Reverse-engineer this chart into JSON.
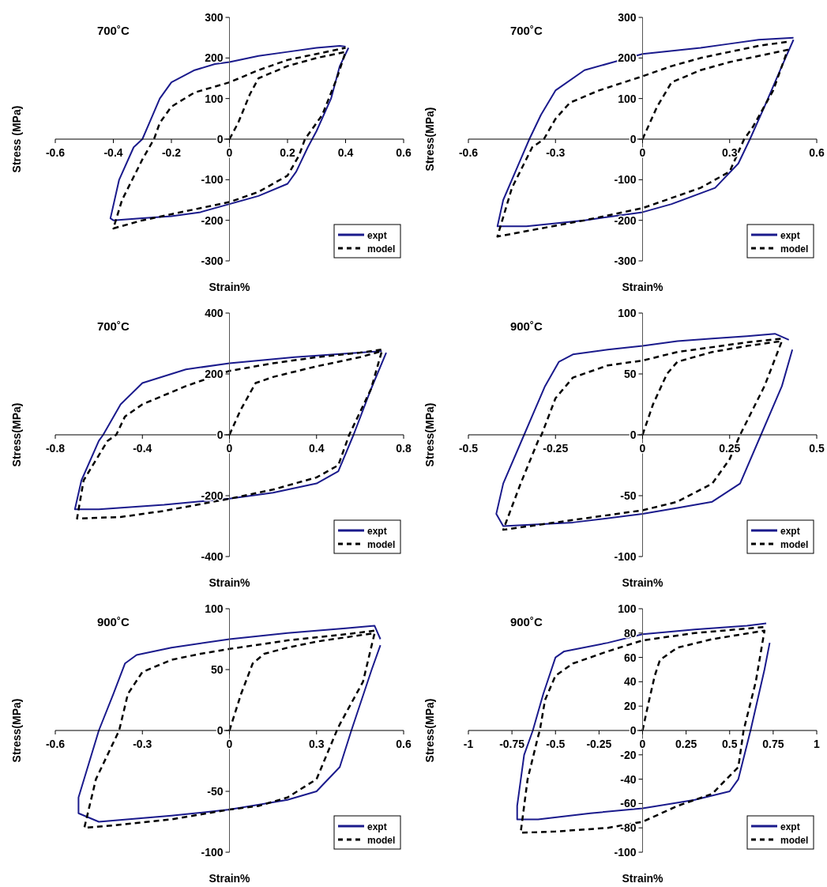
{
  "chart_data": [
    {
      "type": "line",
      "title": "700˚C",
      "xlabel": "Strain%",
      "ylabel": "Stress (MPa)",
      "xlim": [
        -0.6,
        0.6
      ],
      "ylim": [
        -300,
        300
      ],
      "xticks": [
        -0.6,
        -0.4,
        -0.2,
        0,
        0.2,
        0.4,
        0.6
      ],
      "yticks": [
        -300,
        -200,
        -100,
        0,
        100,
        200,
        300
      ],
      "legend": "bottom right",
      "series": [
        {
          "name": "expt",
          "color": "#1a1a8c",
          "line_style": "solid",
          "x": [
            0.41,
            0.38,
            0.35,
            0.3,
            0.27,
            0.23,
            0.2,
            0.1,
            0,
            -0.1,
            -0.2,
            -0.3,
            -0.4,
            -0.41,
            -0.38,
            -0.33,
            -0.3,
            -0.27,
            -0.24,
            -0.2,
            -0.12,
            -0.05,
            0,
            0.1,
            0.2,
            0.3,
            0.38,
            0.4
          ],
          "values": [
            225,
            180,
            100,
            20,
            -20,
            -80,
            -110,
            -140,
            -160,
            -180,
            -190,
            -195,
            -200,
            -195,
            -100,
            -20,
            0,
            50,
            100,
            140,
            170,
            185,
            190,
            205,
            215,
            225,
            230,
            228
          ]
        },
        {
          "name": "model",
          "color": "#000000",
          "line_style": "dashed",
          "x": [
            0,
            0.03,
            0.07,
            0.1,
            0.2,
            0.3,
            0.4,
            0.37,
            0.32,
            0.26,
            0.24,
            0.2,
            0.1,
            0,
            -0.1,
            -0.2,
            -0.3,
            -0.4,
            -0.37,
            -0.3,
            -0.26,
            -0.24,
            -0.2,
            -0.12,
            0,
            0.1,
            0.2,
            0.3,
            0.4
          ],
          "values": [
            0,
            40,
            110,
            150,
            180,
            200,
            215,
            150,
            60,
            0,
            -40,
            -90,
            -130,
            -155,
            -170,
            -185,
            -200,
            -220,
            -150,
            -50,
            0,
            40,
            80,
            115,
            140,
            170,
            195,
            210,
            225
          ]
        }
      ]
    },
    {
      "type": "line",
      "title": "700˚C",
      "xlabel": "Strain%",
      "ylabel": "Stress(MPa)",
      "xlim": [
        -0.6,
        0.6
      ],
      "ylim": [
        -300,
        300
      ],
      "xticks": [
        -0.6,
        -0.3,
        0,
        0.3,
        0.6
      ],
      "yticks": [
        -300,
        -200,
        -100,
        0,
        100,
        200,
        300
      ],
      "legend": "bottom right",
      "series": [
        {
          "name": "expt",
          "color": "#1a1a8c",
          "line_style": "solid",
          "x": [
            0.52,
            0.48,
            0.42,
            0.37,
            0.33,
            0.25,
            0.1,
            0,
            -0.2,
            -0.4,
            -0.5,
            -0.48,
            -0.42,
            -0.39,
            -0.35,
            -0.3,
            -0.2,
            -0.1,
            0,
            0.2,
            0.3,
            0.4,
            0.52
          ],
          "values": [
            245,
            180,
            80,
            0,
            -60,
            -120,
            -160,
            -180,
            -200,
            -215,
            -215,
            -150,
            -50,
            0,
            60,
            120,
            170,
            190,
            210,
            225,
            235,
            245,
            250
          ]
        },
        {
          "name": "model",
          "color": "#000000",
          "line_style": "dashed",
          "x": [
            0,
            0.05,
            0.1,
            0.2,
            0.3,
            0.4,
            0.5,
            0.45,
            0.38,
            0.35,
            0.3,
            0.2,
            0.1,
            0,
            -0.2,
            -0.35,
            -0.5,
            -0.45,
            -0.38,
            -0.34,
            -0.3,
            -0.25,
            -0.15,
            0,
            0.1,
            0.2,
            0.3,
            0.4,
            0.5
          ],
          "values": [
            0,
            80,
            140,
            170,
            190,
            205,
            220,
            120,
            30,
            0,
            -80,
            -120,
            -145,
            -170,
            -200,
            -220,
            -240,
            -120,
            -20,
            0,
            50,
            90,
            120,
            155,
            180,
            200,
            215,
            230,
            240
          ]
        }
      ]
    },
    {
      "type": "line",
      "title": "700˚C",
      "xlabel": "Strain%",
      "ylabel": "Stress(MPa)",
      "xlim": [
        -0.8,
        0.8
      ],
      "ylim": [
        -400,
        400
      ],
      "xticks": [
        -0.8,
        -0.4,
        0,
        0.4,
        0.8
      ],
      "yticks": [
        -400,
        -200,
        0,
        200,
        400
      ],
      "legend": "bottom right",
      "series": [
        {
          "name": "expt",
          "color": "#1a1a8c",
          "line_style": "solid",
          "x": [
            0.72,
            0.65,
            0.57,
            0.5,
            0.4,
            0.2,
            0,
            -0.3,
            -0.6,
            -0.71,
            -0.68,
            -0.6,
            -0.58,
            -0.5,
            -0.4,
            -0.2,
            0,
            0.3,
            0.6,
            0.7
          ],
          "values": [
            270,
            150,
            0,
            -120,
            -160,
            -190,
            -210,
            -230,
            -245,
            -245,
            -150,
            -20,
            0,
            100,
            170,
            215,
            235,
            255,
            270,
            275
          ]
        },
        {
          "name": "model",
          "color": "#000000",
          "line_style": "dashed",
          "x": [
            0,
            0.05,
            0.12,
            0.2,
            0.4,
            0.6,
            0.7,
            0.65,
            0.55,
            0.5,
            0.4,
            0.2,
            0,
            -0.3,
            -0.5,
            -0.7,
            -0.67,
            -0.56,
            -0.52,
            -0.48,
            -0.4,
            -0.2,
            0,
            0.2,
            0.4,
            0.6,
            0.7
          ],
          "values": [
            0,
            80,
            170,
            190,
            225,
            255,
            275,
            150,
            0,
            -100,
            -140,
            -180,
            -210,
            -250,
            -270,
            -275,
            -150,
            -20,
            0,
            60,
            100,
            160,
            210,
            235,
            255,
            270,
            280
          ]
        }
      ]
    },
    {
      "type": "line",
      "title": "900˚C",
      "xlabel": "Strain%",
      "ylabel": "Stress(MPa)",
      "xlim": [
        -0.5,
        0.5
      ],
      "ylim": [
        -100,
        100
      ],
      "xticks": [
        -0.5,
        -0.25,
        0,
        0.25,
        0.5
      ],
      "yticks": [
        -100,
        -50,
        0,
        50,
        100
      ],
      "legend": "bottom right",
      "series": [
        {
          "name": "expt",
          "color": "#1a1a8c",
          "line_style": "solid",
          "x": [
            0.43,
            0.4,
            0.34,
            0.28,
            0.2,
            0.1,
            0,
            -0.2,
            -0.4,
            -0.42,
            -0.4,
            -0.34,
            -0.31,
            -0.28,
            -0.24,
            -0.2,
            -0.1,
            0,
            0.1,
            0.2,
            0.3,
            0.38,
            0.42
          ],
          "values": [
            70,
            40,
            0,
            -40,
            -55,
            -60,
            -65,
            -72,
            -75,
            -65,
            -40,
            0,
            20,
            40,
            60,
            66,
            70,
            73,
            77,
            79,
            81,
            83,
            78
          ]
        },
        {
          "name": "model",
          "color": "#000000",
          "line_style": "dashed",
          "x": [
            0,
            0.03,
            0.07,
            0.1,
            0.2,
            0.3,
            0.4,
            0.35,
            0.28,
            0.25,
            0.2,
            0.1,
            0,
            -0.2,
            -0.4,
            -0.35,
            -0.3,
            -0.29,
            -0.25,
            -0.2,
            -0.1,
            0,
            0.1,
            0.2,
            0.3,
            0.4
          ],
          "values": [
            0,
            25,
            50,
            60,
            68,
            73,
            77,
            40,
            0,
            -20,
            -40,
            -55,
            -62,
            -70,
            -78,
            -40,
            -5,
            0,
            30,
            47,
            57,
            61,
            68,
            72,
            76,
            79
          ]
        }
      ]
    },
    {
      "type": "line",
      "title": "900˚C",
      "xlabel": "Strain%",
      "ylabel": "Stress(MPa)",
      "xlim": [
        -0.6,
        0.6
      ],
      "ylim": [
        -100,
        100
      ],
      "xticks": [
        -0.6,
        -0.3,
        0,
        0.3,
        0.6
      ],
      "yticks": [
        -100,
        -50,
        0,
        50,
        100
      ],
      "legend": "bottom right",
      "series": [
        {
          "name": "expt",
          "color": "#1a1a8c",
          "line_style": "solid",
          "x": [
            0.52,
            0.49,
            0.42,
            0.38,
            0.3,
            0.2,
            0,
            -0.2,
            -0.45,
            -0.52,
            -0.52,
            -0.45,
            -0.4,
            -0.36,
            -0.32,
            -0.2,
            0,
            0.2,
            0.4,
            0.5,
            0.52
          ],
          "values": [
            70,
            50,
            0,
            -30,
            -50,
            -57,
            -65,
            -70,
            -75,
            -68,
            -55,
            0,
            30,
            55,
            62,
            68,
            75,
            80,
            84,
            86,
            75
          ]
        },
        {
          "name": "model",
          "color": "#000000",
          "line_style": "dashed",
          "x": [
            0,
            0.04,
            0.08,
            0.12,
            0.2,
            0.3,
            0.5,
            0.46,
            0.38,
            0.37,
            0.3,
            0.2,
            0.1,
            0,
            -0.2,
            -0.4,
            -0.5,
            -0.46,
            -0.39,
            -0.38,
            -0.35,
            -0.3,
            -0.2,
            -0.1,
            0,
            0.2,
            0.4,
            0.5
          ],
          "values": [
            0,
            30,
            55,
            63,
            68,
            73,
            80,
            40,
            5,
            0,
            -40,
            -55,
            -62,
            -65,
            -73,
            -78,
            -80,
            -40,
            -5,
            0,
            30,
            48,
            58,
            63,
            67,
            74,
            79,
            82
          ]
        }
      ]
    },
    {
      "type": "line",
      "title": "900˚C",
      "xlabel": "Strain%",
      "ylabel": "Stress(MPa)",
      "xlim": [
        -1,
        1
      ],
      "ylim": [
        -100,
        100
      ],
      "xticks": [
        -1,
        -0.75,
        -0.5,
        -0.25,
        0,
        0.25,
        0.5,
        0.75,
        1
      ],
      "yticks": [
        -100,
        -80,
        -60,
        -40,
        -20,
        0,
        20,
        40,
        60,
        80,
        100
      ],
      "legend": "bottom right",
      "series": [
        {
          "name": "expt",
          "color": "#1a1a8c",
          "line_style": "solid",
          "x": [
            0.73,
            0.7,
            0.62,
            0.55,
            0.5,
            0.3,
            0,
            -0.3,
            -0.6,
            -0.72,
            -0.72,
            -0.68,
            -0.63,
            -0.57,
            -0.5,
            -0.45,
            -0.2,
            0,
            0.3,
            0.6,
            0.71
          ],
          "values": [
            72,
            50,
            0,
            -40,
            -50,
            -57,
            -64,
            -68,
            -73,
            -73,
            -62,
            -20,
            0,
            30,
            60,
            65,
            72,
            79,
            83,
            86,
            88
          ]
        },
        {
          "name": "model",
          "color": "#000000",
          "line_style": "dashed",
          "x": [
            0,
            0.03,
            0.07,
            0.1,
            0.2,
            0.4,
            0.7,
            0.65,
            0.58,
            0.55,
            0.4,
            0.2,
            0,
            -0.2,
            -0.5,
            -0.7,
            -0.66,
            -0.6,
            -0.59,
            -0.56,
            -0.5,
            -0.4,
            -0.2,
            0,
            0.3,
            0.7
          ],
          "values": [
            0,
            20,
            45,
            58,
            68,
            75,
            82,
            40,
            0,
            -30,
            -52,
            -62,
            -75,
            -80,
            -83,
            -84,
            -40,
            -5,
            0,
            25,
            45,
            55,
            65,
            74,
            80,
            85
          ]
        }
      ]
    }
  ]
}
